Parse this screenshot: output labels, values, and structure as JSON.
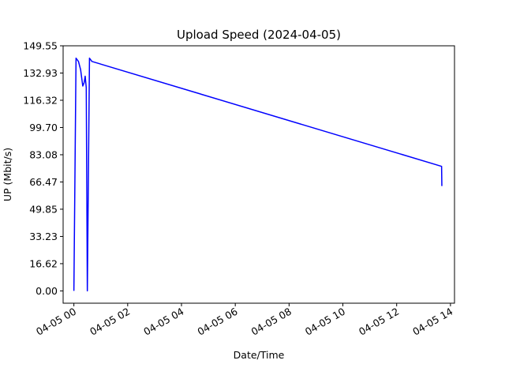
{
  "chart_data": {
    "type": "line",
    "title": "Upload Speed (2024-04-05)",
    "xlabel": "Date/Time",
    "ylabel": "UP (Mbit/s)",
    "grid": false,
    "legend": "none",
    "x_unit": "hours",
    "xlim": [
      -0.4,
      14.15
    ],
    "ylim": [
      -7.5,
      149.55
    ],
    "x_ticks": [
      {
        "value": 0,
        "label": "04-05 00"
      },
      {
        "value": 2,
        "label": "04-05 02"
      },
      {
        "value": 4,
        "label": "04-05 04"
      },
      {
        "value": 6,
        "label": "04-05 06"
      },
      {
        "value": 8,
        "label": "04-05 08"
      },
      {
        "value": 10,
        "label": "04-05 10"
      },
      {
        "value": 12,
        "label": "04-05 12"
      },
      {
        "value": 14,
        "label": "04-05 14"
      }
    ],
    "y_ticks": [
      {
        "value": 0,
        "label": "0.00"
      },
      {
        "value": 16.62,
        "label": "16.62"
      },
      {
        "value": 33.23,
        "label": "33.23"
      },
      {
        "value": 49.85,
        "label": "49.85"
      },
      {
        "value": 66.47,
        "label": "66.47"
      },
      {
        "value": 83.08,
        "label": "83.08"
      },
      {
        "value": 99.7,
        "label": "99.70"
      },
      {
        "value": 116.32,
        "label": "116.32"
      },
      {
        "value": 132.93,
        "label": "132.93"
      },
      {
        "value": 149.55,
        "label": "149.55"
      }
    ],
    "series": [
      {
        "color": "#0000ff",
        "x": [
          0.0,
          0.08,
          0.17,
          0.25,
          0.33,
          0.38,
          0.42,
          0.46,
          0.5,
          0.58,
          0.67,
          13.67,
          13.68
        ],
        "y": [
          0.0,
          142.0,
          140.0,
          135.0,
          125.0,
          127.0,
          131.0,
          124.0,
          0.0,
          142.0,
          140.0,
          76.0,
          64.0
        ]
      }
    ]
  },
  "style": {
    "line_color": "#0000ff",
    "axis_color": "#000000",
    "background": "#ffffff"
  }
}
